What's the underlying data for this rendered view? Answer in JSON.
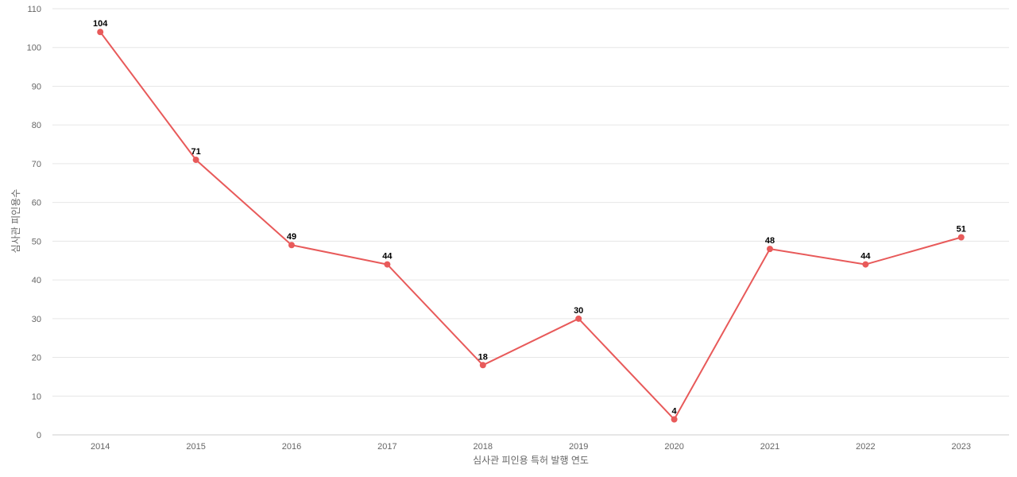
{
  "chart_data": {
    "type": "line",
    "title": "",
    "xlabel": "심사관 피인용 특허 발행 연도",
    "ylabel": "심사관 피인용수",
    "categories": [
      "2014",
      "2015",
      "2016",
      "2017",
      "2018",
      "2019",
      "2020",
      "2021",
      "2022",
      "2023"
    ],
    "series": [
      {
        "values": [
          104,
          71,
          49,
          44,
          18,
          30,
          4,
          48,
          44,
          51
        ]
      }
    ],
    "ylim": [
      0,
      110
    ],
    "yticks": [
      0,
      10,
      20,
      30,
      40,
      50,
      60,
      70,
      80,
      90,
      100,
      110
    ],
    "grid": true,
    "legend": "none",
    "data_labels": true
  },
  "colors": {
    "line": "#e85a5a",
    "grid": "#e6e6e6",
    "axis": "#cccccc",
    "text": "#666666"
  }
}
